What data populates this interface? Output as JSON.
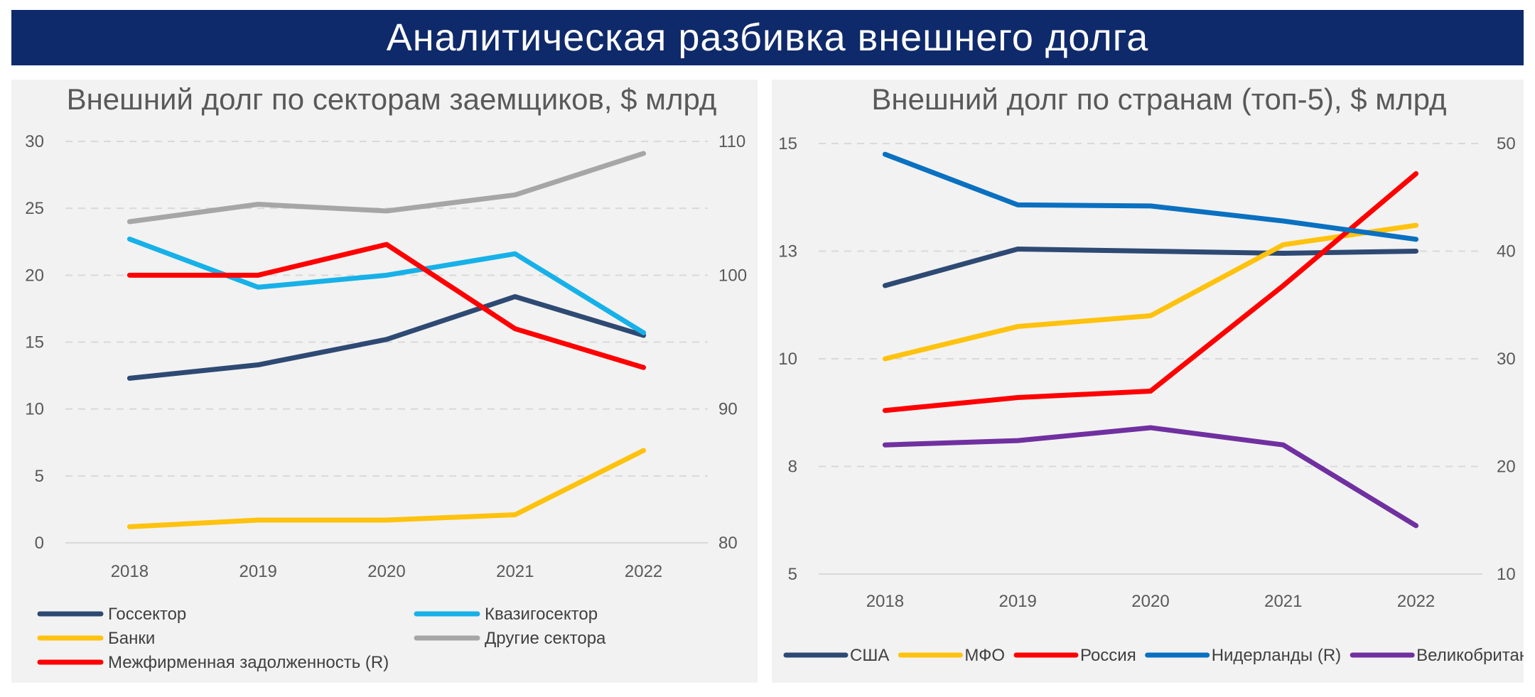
{
  "header": {
    "title": "Аналитическая разбивка внешнего долга"
  },
  "chart_data": [
    {
      "type": "line",
      "title": "Внешний долг по секторам заемщиков, $ млрд",
      "categories": [
        "2018",
        "2019",
        "2020",
        "2021",
        "2022"
      ],
      "ylim": [
        0,
        30
      ],
      "y_ticks": [
        "0",
        "5",
        "10",
        "15",
        "20",
        "25",
        "30"
      ],
      "y2lim": [
        80,
        110
      ],
      "y2_ticks": [
        "80",
        "90",
        "100",
        "110"
      ],
      "grid": "horizontal dashed",
      "legend_position": "bottom",
      "series": [
        {
          "name": "Госсектор",
          "axis": "left",
          "color": "#2e4a73",
          "values": [
            12.3,
            13.3,
            15.2,
            18.4,
            15.5
          ]
        },
        {
          "name": "Квазигосектор",
          "axis": "left",
          "color": "#17b1e8",
          "values": [
            22.7,
            19.1,
            20.0,
            21.6,
            15.7
          ]
        },
        {
          "name": "Банки",
          "axis": "left",
          "color": "#ffc20e",
          "values": [
            1.2,
            1.7,
            1.7,
            2.1,
            6.9
          ]
        },
        {
          "name": "Другие сектора",
          "axis": "left",
          "color": "#a6a6a6",
          "values": [
            24.0,
            25.3,
            24.8,
            26.0,
            29.1
          ]
        },
        {
          "name": "Межфирменная задолженность (R)",
          "axis": "right",
          "color": "#ff0000",
          "values": [
            100.0,
            100.0,
            102.3,
            96.0,
            93.1
          ]
        }
      ]
    },
    {
      "type": "line",
      "title": "Внешний долг по странам (топ-5), $ млрд",
      "categories": [
        "2018",
        "2019",
        "2020",
        "2021",
        "2022"
      ],
      "ylim": [
        5,
        15
      ],
      "y_ticks": [
        "5",
        "8",
        "10",
        "13",
        "15"
      ],
      "y_tick_values": [
        5,
        7.5,
        10,
        12.5,
        15
      ],
      "y2lim": [
        10,
        50
      ],
      "y2_ticks": [
        "10",
        "20",
        "30",
        "40",
        "50"
      ],
      "grid": "horizontal dashed",
      "legend_position": "bottom",
      "series": [
        {
          "name": "США",
          "axis": "left",
          "color": "#2e4a73",
          "values": [
            11.7,
            12.55,
            12.5,
            12.45,
            12.5
          ]
        },
        {
          "name": "МФО",
          "axis": "left",
          "color": "#ffc20e",
          "values": [
            10.0,
            10.75,
            11.0,
            12.65,
            13.1
          ]
        },
        {
          "name": "Россия",
          "axis": "left",
          "color": "#ff0000",
          "values": [
            8.8,
            9.1,
            9.25,
            11.7,
            14.3
          ]
        },
        {
          "name": "Нидерланды (R)",
          "axis": "right",
          "color": "#0a70c0",
          "values": [
            49.0,
            44.3,
            44.2,
            42.8,
            41.1
          ]
        },
        {
          "name": "Великобритания (R)",
          "axis": "right",
          "color": "#7030a0",
          "values": [
            22.0,
            22.4,
            23.6,
            22.0,
            14.5
          ]
        }
      ]
    }
  ]
}
